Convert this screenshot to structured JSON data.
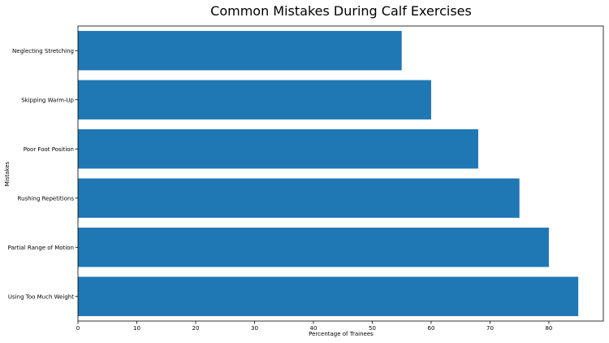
{
  "chart_data": {
    "type": "bar",
    "orientation": "horizontal",
    "title": "Common Mistakes During Calf Exercises",
    "xlabel": "Percentage of Trainees",
    "ylabel": "Mistakes",
    "categories": [
      "Using Too Much Weight",
      "Partial Range of Motion",
      "Rushing Repetitions",
      "Poor Foot Position",
      "Skipping Warm-Up",
      "Neglecting Stretching"
    ],
    "values": [
      85,
      80,
      75,
      68,
      60,
      55
    ],
    "xlim": [
      0,
      89.25
    ],
    "xticks": [
      "0",
      "10",
      "20",
      "30",
      "40",
      "50",
      "60",
      "70",
      "80"
    ],
    "grid": false,
    "bar_color": "#1f77b4"
  }
}
